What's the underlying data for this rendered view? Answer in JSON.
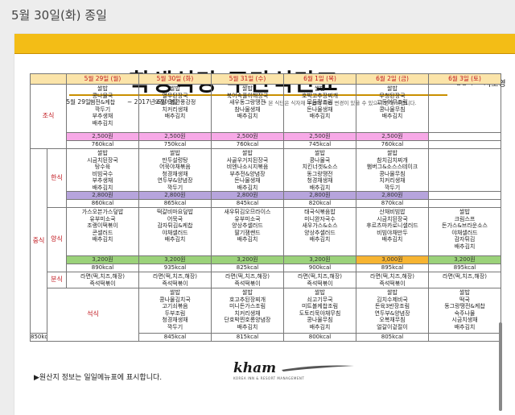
{
  "post": {
    "date_header": "5월 30일(화) 종일"
  },
  "document": {
    "title": "학생식당 주간식단표",
    "nutritionist_label": "영양사",
    "nutritionist_name": "서보영",
    "period_start": "2017년 5월 29일",
    "period_end": "~ 2017년 6월 3일",
    "notice": "* 본 식단은 식자재 수급에 따라 변경이 있을 수 있으니 양해 바랍니다.",
    "footer_note": "▶원산지 정보는 일일메뉴표에 표시합니다.",
    "logo_text": "kham",
    "logo_subtext": "KOREA INN & RESORT MANAGEMENT"
  },
  "days": [
    "5월 29일 (월)",
    "5월 30일 (화)",
    "5월 31일 (수)",
    "6월 1일 (목)",
    "6월 2일 (금)",
    "6월 3일 (토)"
  ],
  "sections": {
    "breakfast": "조식",
    "lunch": "중식",
    "korean": "한식",
    "western": "양식",
    "snack": "분식",
    "dinner": "석식"
  },
  "breakfast": {
    "menus": [
      "쌀밥\n콩나물국\n햄전&케찹\n깍두기\n부추생채\n배추김치",
      "쌀밥\n열무된장국\n오징어볼깐풍강정\n치커리생채\n배추김치",
      "쌀밥\n북어속풀이해장국\n새우동그랑땡전\n참나물생채\n배추김치",
      "쌀밥\n호박고추장찌개\n모듬장조림\n돈나물생채\n배추김치",
      "쌀밥\n무청된장국\n고등어무조림\n콩나물무침\n배추김치",
      ""
    ],
    "prices": [
      "2,500원",
      "2,500원",
      "2,500원",
      "2,500원",
      "2,500원",
      ""
    ],
    "kcal": [
      "760kcal",
      "750kcal",
      "760kcal",
      "745kcal",
      "760kcal",
      ""
    ]
  },
  "korean": {
    "menus": [
      "쌀밥\n시금치된장국\n탕수육\n비빔국수\n부추생채\n배추김치",
      "쌀밥\n만두설렁탕\n어묵야채볶음\n청경채생채\n연두부&양념장\n깍두기",
      "쌀밥\n사골우거지된장국\n비엔나소시지볶음\n부추전&양념장\n돈나물생채\n배추김치",
      "쌀밥\n콩나물국\n치킨너겟&소스\n동그랑땡전\n청경채생채\n배추김치",
      "쌀밥\n참치김치찌개\n햄버그&소스스테이크\n콩나물무침\n치커리생채\n깍두기",
      ""
    ],
    "prices": [
      "2,800원",
      "2,800원",
      "2,800원",
      "2,800원",
      "2,800원",
      ""
    ],
    "kcal": [
      "860kcal",
      "865kcal",
      "845kcal",
      "820kcal",
      "870kcal",
      ""
    ]
  },
  "western": {
    "menus": [
      "가스오븐가스덮밥\n유부미소국\n조랭이떡볶이\n콘샐러드\n배추김치",
      "떡갈비마요덮밥\n어묵국\n감자튀김&케찹\n야채샐러드\n배추김치",
      "새우튀김오므라이스\n유부미소국\n양상추샐러드\n딸기잼쌘드\n배추김치",
      "태국식볶음밥\n미니완자국수\n새우가스&소스\n양상추샐러드\n배추김치",
      "산채비빔밥\n시금치된장국\n후르츠마카로니샐러드\n비빔야채만두\n배추김치",
      "쌀밥\n크림스프\n돈가스&브라운소스\n야채샐러드\n감자튀김\n배추김치"
    ],
    "prices": [
      "3,200원",
      "3,200원",
      "3,200원",
      "3,200원",
      "3,000원",
      "3,200원"
    ],
    "kcal": [
      "890kcal",
      "935kcal",
      "825kcal",
      "900kcal",
      "895kcal",
      "895kcal"
    ]
  },
  "snack": {
    "menus": [
      "라면(떡,치즈,해장)\n즉석떡볶이",
      "라면(떡,치즈,해장)\n즉석떡볶이",
      "라면(떡,치즈,해장)\n즉석떡볶이",
      "라면(떡,치즈,해장)\n즉석떡볶이",
      "라면(떡,치즈,해장)\n즉석떡볶이",
      "라면(떡,치즈,해장)"
    ]
  },
  "dinner": {
    "menus": [
      "쌀밥\n콩나물김치국\n고기쇠볶음\n두부조림\n청경채생채\n깍두기",
      "쌀밥\n호고추된장찌개\n미니돈가스조림\n치커리생채\n단호박찐호롱양념장\n배추김치",
      "쌀밥\n쇠고기무국\n미트볼케찹조림\n도토리묵야채무침\n콩나물무침\n배추김치",
      "쌀밥\n김치수제비국\n돈육3반장조림\n연두부&양념장\n오복채무침\n얼갈이겉절이",
      "쌀밥\n떡국\n동그랑땡전&케찹\n숙주나물\n시금치생채\n배추김치",
      ""
    ],
    "kcal": [
      "850kcal",
      "845kcal",
      "815kcal",
      "800kcal",
      "805kcal",
      ""
    ]
  }
}
